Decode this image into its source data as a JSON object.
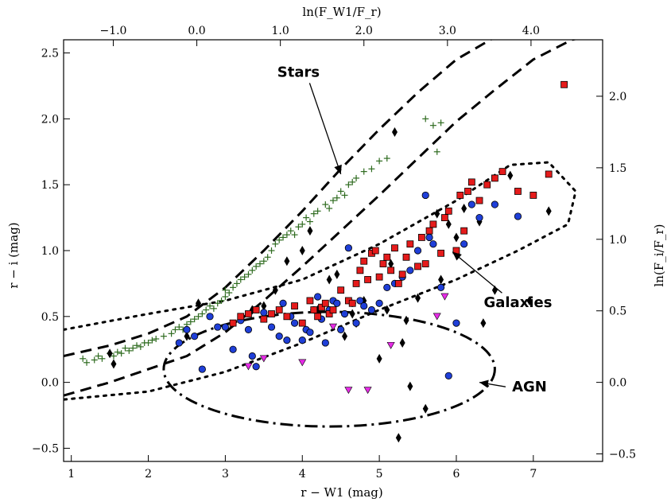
{
  "chart_data": {
    "type": "scatter",
    "xlabel": "r − W1 (mag)",
    "ylabel": "r − i (mag)",
    "top_xlabel": "ln(F_W1/F_r)",
    "right_ylabel": "ln(F_i/F_r)",
    "xlim": [
      0.9,
      7.9
    ],
    "ylim": [
      -0.6,
      2.6
    ],
    "xticks": [
      "1",
      "2",
      "3",
      "4",
      "5",
      "6",
      "7"
    ],
    "xtick_values": [
      1,
      2,
      3,
      4,
      5,
      6,
      7
    ],
    "yticks": [
      "−0.5",
      "0.0",
      "0.5",
      "1.0",
      "1.5",
      "2.0",
      "2.5"
    ],
    "ytick_values": [
      -0.5,
      0,
      0.5,
      1.0,
      1.5,
      2.0,
      2.5
    ],
    "top_ticks": [
      "−1.0",
      "0.0",
      "1.0",
      "2.0",
      "3.0",
      "4.0"
    ],
    "top_tick_values": [
      -1,
      0,
      1,
      2,
      3,
      4
    ],
    "right_ticks": [
      "−0.5",
      "0.0",
      "0.5",
      "1.0",
      "1.5",
      "2.0"
    ],
    "right_tick_values": [
      -0.5,
      0,
      0.5,
      1.0,
      1.5,
      2.0
    ],
    "annotations": [
      {
        "text": "Stars",
        "x": 3.95,
        "y": 2.32,
        "arrow_to": [
          4.5,
          1.58
        ]
      },
      {
        "text": "Galaxies",
        "x": 6.8,
        "y": 0.57,
        "arrow_to": [
          5.95,
          0.99
        ]
      },
      {
        "text": "AGN",
        "x": 6.95,
        "y": -0.07,
        "arrow_to": [
          6.3,
          0.0
        ]
      }
    ],
    "series": [
      {
        "marker": "plus",
        "color": "#2e6b1f",
        "x": [
          1.15,
          1.2,
          1.3,
          1.35,
          1.4,
          1.5,
          1.55,
          1.6,
          1.65,
          1.7,
          1.75,
          1.8,
          1.85,
          1.9,
          1.95,
          2.0,
          2.05,
          2.1,
          2.2,
          2.3,
          2.35,
          2.4,
          2.45,
          2.5,
          2.55,
          2.6,
          2.65,
          2.7,
          2.75,
          2.8,
          2.85,
          2.9,
          2.95,
          3.0,
          3.0,
          3.05,
          3.1,
          3.15,
          3.2,
          3.25,
          3.3,
          3.35,
          3.4,
          3.45,
          3.5,
          3.55,
          3.6,
          3.65,
          3.7,
          3.75,
          3.8,
          3.85,
          3.9,
          3.95,
          4.0,
          4.05,
          4.1,
          4.15,
          4.2,
          4.3,
          4.35,
          4.4,
          4.45,
          4.5,
          4.55,
          4.6,
          4.65,
          4.7,
          4.8,
          4.9,
          5.0,
          5.1,
          5.6,
          5.7,
          5.75,
          5.8
        ],
        "y": [
          0.18,
          0.15,
          0.17,
          0.2,
          0.18,
          0.22,
          0.2,
          0.23,
          0.22,
          0.26,
          0.24,
          0.26,
          0.28,
          0.27,
          0.3,
          0.3,
          0.32,
          0.33,
          0.35,
          0.37,
          0.4,
          0.42,
          0.4,
          0.44,
          0.46,
          0.48,
          0.5,
          0.52,
          0.55,
          0.58,
          0.56,
          0.6,
          0.62,
          0.65,
          0.7,
          0.68,
          0.72,
          0.75,
          0.78,
          0.8,
          0.82,
          0.85,
          0.88,
          0.9,
          0.92,
          0.95,
          1.0,
          1.05,
          1.08,
          1.1,
          1.12,
          1.15,
          1.12,
          1.18,
          1.2,
          1.25,
          1.22,
          1.28,
          1.3,
          1.35,
          1.32,
          1.38,
          1.4,
          1.45,
          1.42,
          1.5,
          1.52,
          1.55,
          1.6,
          1.62,
          1.68,
          1.7,
          2.0,
          1.95,
          1.75,
          1.97
        ]
      },
      {
        "marker": "diamond",
        "color": "#000000",
        "x": [
          1.5,
          1.55,
          2.5,
          2.65,
          3.35,
          3.5,
          3.65,
          3.8,
          4.0,
          4.1,
          4.2,
          4.35,
          4.45,
          4.55,
          4.65,
          4.7,
          4.8,
          5.0,
          5.1,
          5.15,
          5.2,
          5.25,
          5.3,
          5.35,
          5.4,
          5.5,
          5.6,
          5.75,
          5.8,
          5.9,
          6.0,
          6.1,
          6.3,
          6.35,
          6.5,
          6.7,
          6.95,
          7.2
        ],
        "y": [
          0.22,
          0.14,
          0.35,
          0.6,
          0.55,
          0.58,
          0.7,
          0.92,
          1.0,
          1.15,
          0.55,
          0.78,
          0.82,
          0.35,
          0.52,
          0.45,
          0.62,
          0.18,
          0.55,
          0.9,
          1.9,
          -0.42,
          0.3,
          0.47,
          -0.03,
          0.64,
          -0.2,
          1.28,
          0.78,
          1.2,
          1.1,
          1.32,
          1.22,
          0.45,
          0.7,
          1.57,
          0.62,
          1.3
        ]
      },
      {
        "marker": "circle",
        "color": "#1f3fd8",
        "x": [
          2.4,
          2.5,
          2.6,
          2.7,
          2.8,
          2.9,
          3.0,
          3.1,
          3.2,
          3.3,
          3.35,
          3.4,
          3.5,
          3.6,
          3.7,
          3.75,
          3.8,
          3.85,
          3.9,
          4.0,
          4.05,
          4.1,
          4.15,
          4.2,
          4.25,
          4.3,
          4.35,
          4.4,
          4.45,
          4.5,
          4.55,
          4.6,
          4.65,
          4.7,
          4.75,
          4.8,
          4.9,
          5.0,
          5.1,
          5.2,
          5.3,
          5.4,
          5.5,
          5.6,
          5.65,
          5.7,
          5.8,
          5.9,
          6.0,
          6.1,
          6.2,
          6.3,
          6.5,
          6.8
        ],
        "y": [
          0.3,
          0.4,
          0.35,
          0.1,
          0.5,
          0.42,
          0.42,
          0.25,
          0.47,
          0.4,
          0.2,
          0.12,
          0.53,
          0.42,
          0.35,
          0.6,
          0.32,
          0.5,
          0.45,
          0.32,
          0.4,
          0.38,
          0.55,
          0.65,
          0.48,
          0.3,
          0.55,
          0.62,
          0.6,
          0.4,
          0.52,
          1.02,
          0.6,
          0.45,
          0.62,
          0.58,
          0.55,
          0.6,
          0.72,
          0.75,
          0.8,
          0.85,
          1.0,
          1.42,
          1.1,
          1.05,
          0.72,
          0.05,
          0.45,
          1.05,
          1.35,
          1.25,
          1.35,
          1.26
        ]
      },
      {
        "marker": "square",
        "color": "#e51b1b",
        "x": [
          3.1,
          3.2,
          3.3,
          3.4,
          3.5,
          3.6,
          3.7,
          3.8,
          3.9,
          4.0,
          4.1,
          4.15,
          4.2,
          4.25,
          4.3,
          4.35,
          4.4,
          4.5,
          4.6,
          4.65,
          4.7,
          4.75,
          4.8,
          4.85,
          4.9,
          4.95,
          5.0,
          5.05,
          5.1,
          5.15,
          5.2,
          5.25,
          5.3,
          5.35,
          5.4,
          5.5,
          5.55,
          5.6,
          5.65,
          5.7,
          5.8,
          5.85,
          5.9,
          6.0,
          6.05,
          6.1,
          6.15,
          6.2,
          6.3,
          6.4,
          6.5,
          6.6,
          6.8,
          7.0,
          7.2,
          7.4
        ],
        "y": [
          0.45,
          0.5,
          0.52,
          0.55,
          0.48,
          0.52,
          0.55,
          0.5,
          0.58,
          0.45,
          0.62,
          0.55,
          0.5,
          0.57,
          0.6,
          0.52,
          0.55,
          0.7,
          0.62,
          0.6,
          0.75,
          0.85,
          0.92,
          0.78,
          0.98,
          1.0,
          0.8,
          0.9,
          0.95,
          0.85,
          1.02,
          0.75,
          0.82,
          0.95,
          1.05,
          0.88,
          1.1,
          0.9,
          1.15,
          1.2,
          0.98,
          1.25,
          1.3,
          1.0,
          1.42,
          1.15,
          1.45,
          1.52,
          1.38,
          1.5,
          1.55,
          1.6,
          1.45,
          1.42,
          1.58,
          2.26
        ]
      },
      {
        "marker": "triangle-down",
        "color": "#e62be6",
        "x": [
          3.3,
          3.5,
          4.0,
          4.4,
          4.6,
          4.85,
          5.15,
          5.75,
          5.85
        ],
        "y": [
          0.12,
          0.18,
          0.15,
          0.42,
          -0.06,
          -0.06,
          0.28,
          0.5,
          0.65
        ]
      }
    ],
    "regions": [
      {
        "name": "stars-upper-boundary",
        "style": "dashed",
        "x": [
          0.9,
          1.5,
          2.0,
          2.5,
          3.0,
          3.5,
          4.0,
          4.5,
          5.0,
          5.5,
          6.0,
          6.5,
          7.0,
          7.5,
          7.9
        ],
        "y": [
          0.2,
          0.28,
          0.37,
          0.5,
          0.72,
          1.0,
          1.3,
          1.62,
          1.92,
          2.2,
          2.45,
          2.62,
          2.65,
          2.65,
          2.65
        ]
      },
      {
        "name": "stars-lower-boundary",
        "style": "dashed",
        "x": [
          0.9,
          1.5,
          2.0,
          2.5,
          3.0,
          3.5,
          4.0,
          4.5,
          5.0,
          5.5,
          6.0,
          6.5,
          7.0,
          7.5,
          7.9
        ],
        "y": [
          -0.1,
          0.0,
          0.1,
          0.2,
          0.38,
          0.62,
          0.88,
          1.15,
          1.42,
          1.7,
          1.98,
          2.22,
          2.45,
          2.6,
          2.65
        ]
      }
    ]
  }
}
